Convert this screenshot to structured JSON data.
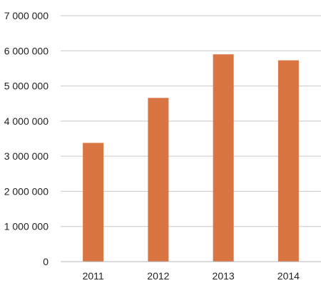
{
  "chart_data": {
    "type": "bar",
    "categories": [
      "2011",
      "2012",
      "2013",
      "2014"
    ],
    "values": [
      3380000,
      4660000,
      5900000,
      5730000
    ],
    "ylim": [
      0,
      7000000
    ],
    "y_ticks": [
      0,
      1000000,
      2000000,
      3000000,
      4000000,
      5000000,
      6000000,
      7000000
    ],
    "y_tick_labels": [
      "0",
      "1 000 000",
      "2 000 000",
      "3 000 000",
      "4 000 000",
      "5 000 000",
      "6 000 000",
      "7 000 000"
    ],
    "grid": true,
    "legend": "none",
    "bar_color": "#d97443",
    "title": "",
    "xlabel": "",
    "ylabel": ""
  }
}
